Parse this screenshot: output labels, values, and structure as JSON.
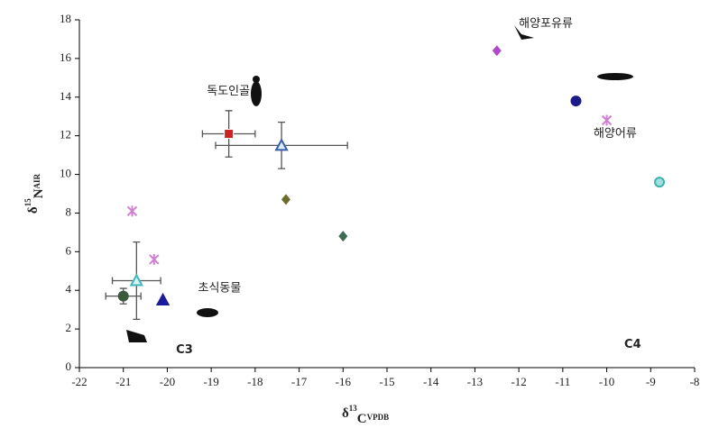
{
  "chart_data": {
    "type": "scatter",
    "xlabel": [
      "δ",
      "13",
      "C",
      "VPDB"
    ],
    "ylabel": [
      "δ",
      "15",
      "N",
      "AIR"
    ],
    "xlim": [
      -22,
      -8
    ],
    "xticks": [
      -22,
      -21,
      -20,
      -19,
      -18,
      -17,
      -16,
      -15,
      -14,
      -13,
      -12,
      -11,
      -10,
      -9,
      -8
    ],
    "ylim": [
      0,
      18
    ],
    "yticks": [
      0,
      2,
      4,
      6,
      8,
      10,
      12,
      14,
      16,
      18
    ],
    "series": [
      {
        "marker": "square",
        "color": "#cc2222",
        "x": [
          -18.6
        ],
        "values": [
          12.1
        ],
        "xerr": [
          0.6
        ],
        "yerr": [
          1.2
        ]
      },
      {
        "marker": "triangle-open",
        "color": "#3a5fa8",
        "x": [
          -17.4
        ],
        "values": [
          11.5
        ],
        "xerr": [
          1.5
        ],
        "yerr": [
          1.2
        ]
      },
      {
        "marker": "diamond",
        "color": "#6b6b2a",
        "x": [
          -17.3
        ],
        "values": [
          8.7
        ]
      },
      {
        "marker": "diamond",
        "color": "#3f6b55",
        "x": [
          -16
        ],
        "values": [
          6.8
        ]
      },
      {
        "marker": "diamond",
        "color": "#b04ac8",
        "x": [
          -12.5
        ],
        "values": [
          16.4
        ]
      },
      {
        "marker": "circle",
        "color": "#1a1a8a",
        "x": [
          -10.7
        ],
        "values": [
          13.8
        ]
      },
      {
        "marker": "x",
        "color": "#d080d0",
        "x": [
          -10,
          -20.8,
          -20.3
        ],
        "values": [
          12.8,
          8.1,
          5.6
        ]
      },
      {
        "marker": "circle-open",
        "color": "#40b0b0",
        "x": [
          -8.8
        ],
        "values": [
          9.6
        ]
      },
      {
        "marker": "triangle-open",
        "color": "#40b8b8",
        "x": [
          -20.7
        ],
        "values": [
          4.5
        ],
        "xerr": [
          0.55
        ],
        "yerr": [
          2
        ]
      },
      {
        "marker": "circle",
        "color": "#3a5a3a",
        "x": [
          -21
        ],
        "values": [
          3.7
        ],
        "xerr": [
          0.4
        ],
        "yerr": [
          0.4
        ]
      },
      {
        "marker": "triangle",
        "color": "#1a1a9a",
        "x": [
          -20.1
        ],
        "values": [
          3.5
        ]
      }
    ],
    "annotations": [
      {
        "text": "해양포유류",
        "color": "#222222"
      },
      {
        "text": "독도인골",
        "color": "#8a8a4a"
      },
      {
        "text": "해양어류",
        "color": "#222222"
      },
      {
        "text": "초식동물",
        "color": "#8a8a4a"
      },
      {
        "text": "C3",
        "color": "#2aa080"
      },
      {
        "text": "C4",
        "color": "#2aa080"
      }
    ]
  }
}
